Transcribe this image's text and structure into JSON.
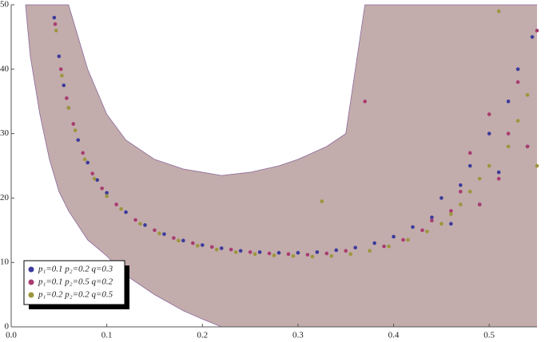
{
  "chart_data": {
    "type": "scatter",
    "xlim": [
      0,
      0.55
    ],
    "ylim": [
      0,
      50
    ],
    "xticks": [
      {
        "value": 0,
        "label": "0.0"
      },
      0.1,
      0.2,
      0.3,
      0.4,
      0.5
    ],
    "yticks": [
      0,
      10,
      20,
      30,
      40,
      50
    ],
    "legend": "lower left",
    "band": {
      "color": "#c3acac",
      "x": [
        0.015,
        0.02,
        0.03,
        0.04,
        0.05,
        0.06,
        0.08,
        0.1,
        0.12,
        0.15,
        0.18,
        0.2,
        0.22,
        0.25,
        0.28,
        0.3,
        0.33,
        0.35,
        0.37,
        0.4,
        0.55
      ],
      "lower": [
        50,
        42,
        33,
        26,
        21,
        18,
        13.5,
        11,
        8,
        5,
        2.5,
        1.2,
        0,
        0,
        0,
        0,
        0,
        0,
        0,
        0,
        0
      ],
      "upper": [
        50,
        50,
        50,
        50,
        50,
        50,
        40,
        33,
        29,
        26,
        24.5,
        24,
        23.5,
        24,
        25,
        26,
        28,
        30,
        50,
        50,
        50
      ]
    },
    "series": [
      {
        "name": "p₁=0.1 p₂=0.2 q=0.3",
        "color": "#3b3b9c",
        "x": [
          0.045,
          0.05,
          0.055,
          0.06,
          0.07,
          0.08,
          0.09,
          0.1,
          0.12,
          0.14,
          0.16,
          0.18,
          0.2,
          0.22,
          0.24,
          0.26,
          0.28,
          0.3,
          0.32,
          0.34,
          0.36,
          0.38,
          0.4,
          0.42,
          0.44,
          0.45,
          0.46,
          0.47,
          0.48,
          0.49,
          0.5,
          0.51,
          0.52,
          0.53,
          0.54,
          0.545
        ],
        "values": [
          48,
          42,
          37.5,
          34,
          29,
          25.5,
          22.8,
          20.8,
          17.8,
          15.8,
          14.4,
          13.4,
          12.7,
          12.2,
          11.8,
          11.6,
          11.5,
          11.5,
          11.6,
          11.9,
          12.3,
          13,
          14,
          15.5,
          17,
          20,
          16,
          22,
          25,
          19,
          30,
          24,
          35,
          40,
          28,
          45
        ]
      },
      {
        "name": "p₁=0.1 p₂=0.5 q=0.2",
        "color": "#a83c70",
        "x": [
          0.046,
          0.052,
          0.058,
          0.065,
          0.075,
          0.085,
          0.095,
          0.11,
          0.13,
          0.15,
          0.17,
          0.19,
          0.21,
          0.23,
          0.25,
          0.27,
          0.29,
          0.31,
          0.33,
          0.35,
          0.37,
          0.39,
          0.41,
          0.43,
          0.44,
          0.46,
          0.47,
          0.48,
          0.49,
          0.5,
          0.51,
          0.52,
          0.53,
          0.54,
          0.55
        ],
        "values": [
          47,
          40,
          35.5,
          31.5,
          27,
          23.8,
          21.5,
          19,
          16.6,
          15,
          13.8,
          13,
          12.4,
          12,
          11.6,
          11.4,
          11.3,
          11.2,
          11.4,
          11.8,
          35,
          12.5,
          13.5,
          15,
          16.5,
          18,
          21,
          27,
          19,
          33,
          23,
          30,
          38,
          28,
          46
        ]
      },
      {
        "name": "p₁=0.2 p₂=0.2 q=0.5",
        "color": "#9c963c",
        "x": [
          0.047,
          0.053,
          0.06,
          0.067,
          0.077,
          0.087,
          0.1,
          0.115,
          0.135,
          0.155,
          0.175,
          0.195,
          0.215,
          0.235,
          0.255,
          0.275,
          0.295,
          0.315,
          0.325,
          0.335,
          0.355,
          0.375,
          0.395,
          0.415,
          0.435,
          0.45,
          0.46,
          0.47,
          0.48,
          0.49,
          0.5,
          0.51,
          0.52,
          0.53,
          0.54,
          0.55
        ],
        "values": [
          46,
          39,
          34,
          30.5,
          26,
          23,
          20.3,
          18.3,
          16,
          14.5,
          13.4,
          12.6,
          12,
          11.6,
          11.3,
          11.1,
          11,
          10.9,
          19.5,
          11,
          11.3,
          11.8,
          12.5,
          13.5,
          14.8,
          16,
          17.5,
          19,
          21,
          23,
          25,
          49,
          28,
          32,
          36,
          25
        ]
      }
    ]
  }
}
